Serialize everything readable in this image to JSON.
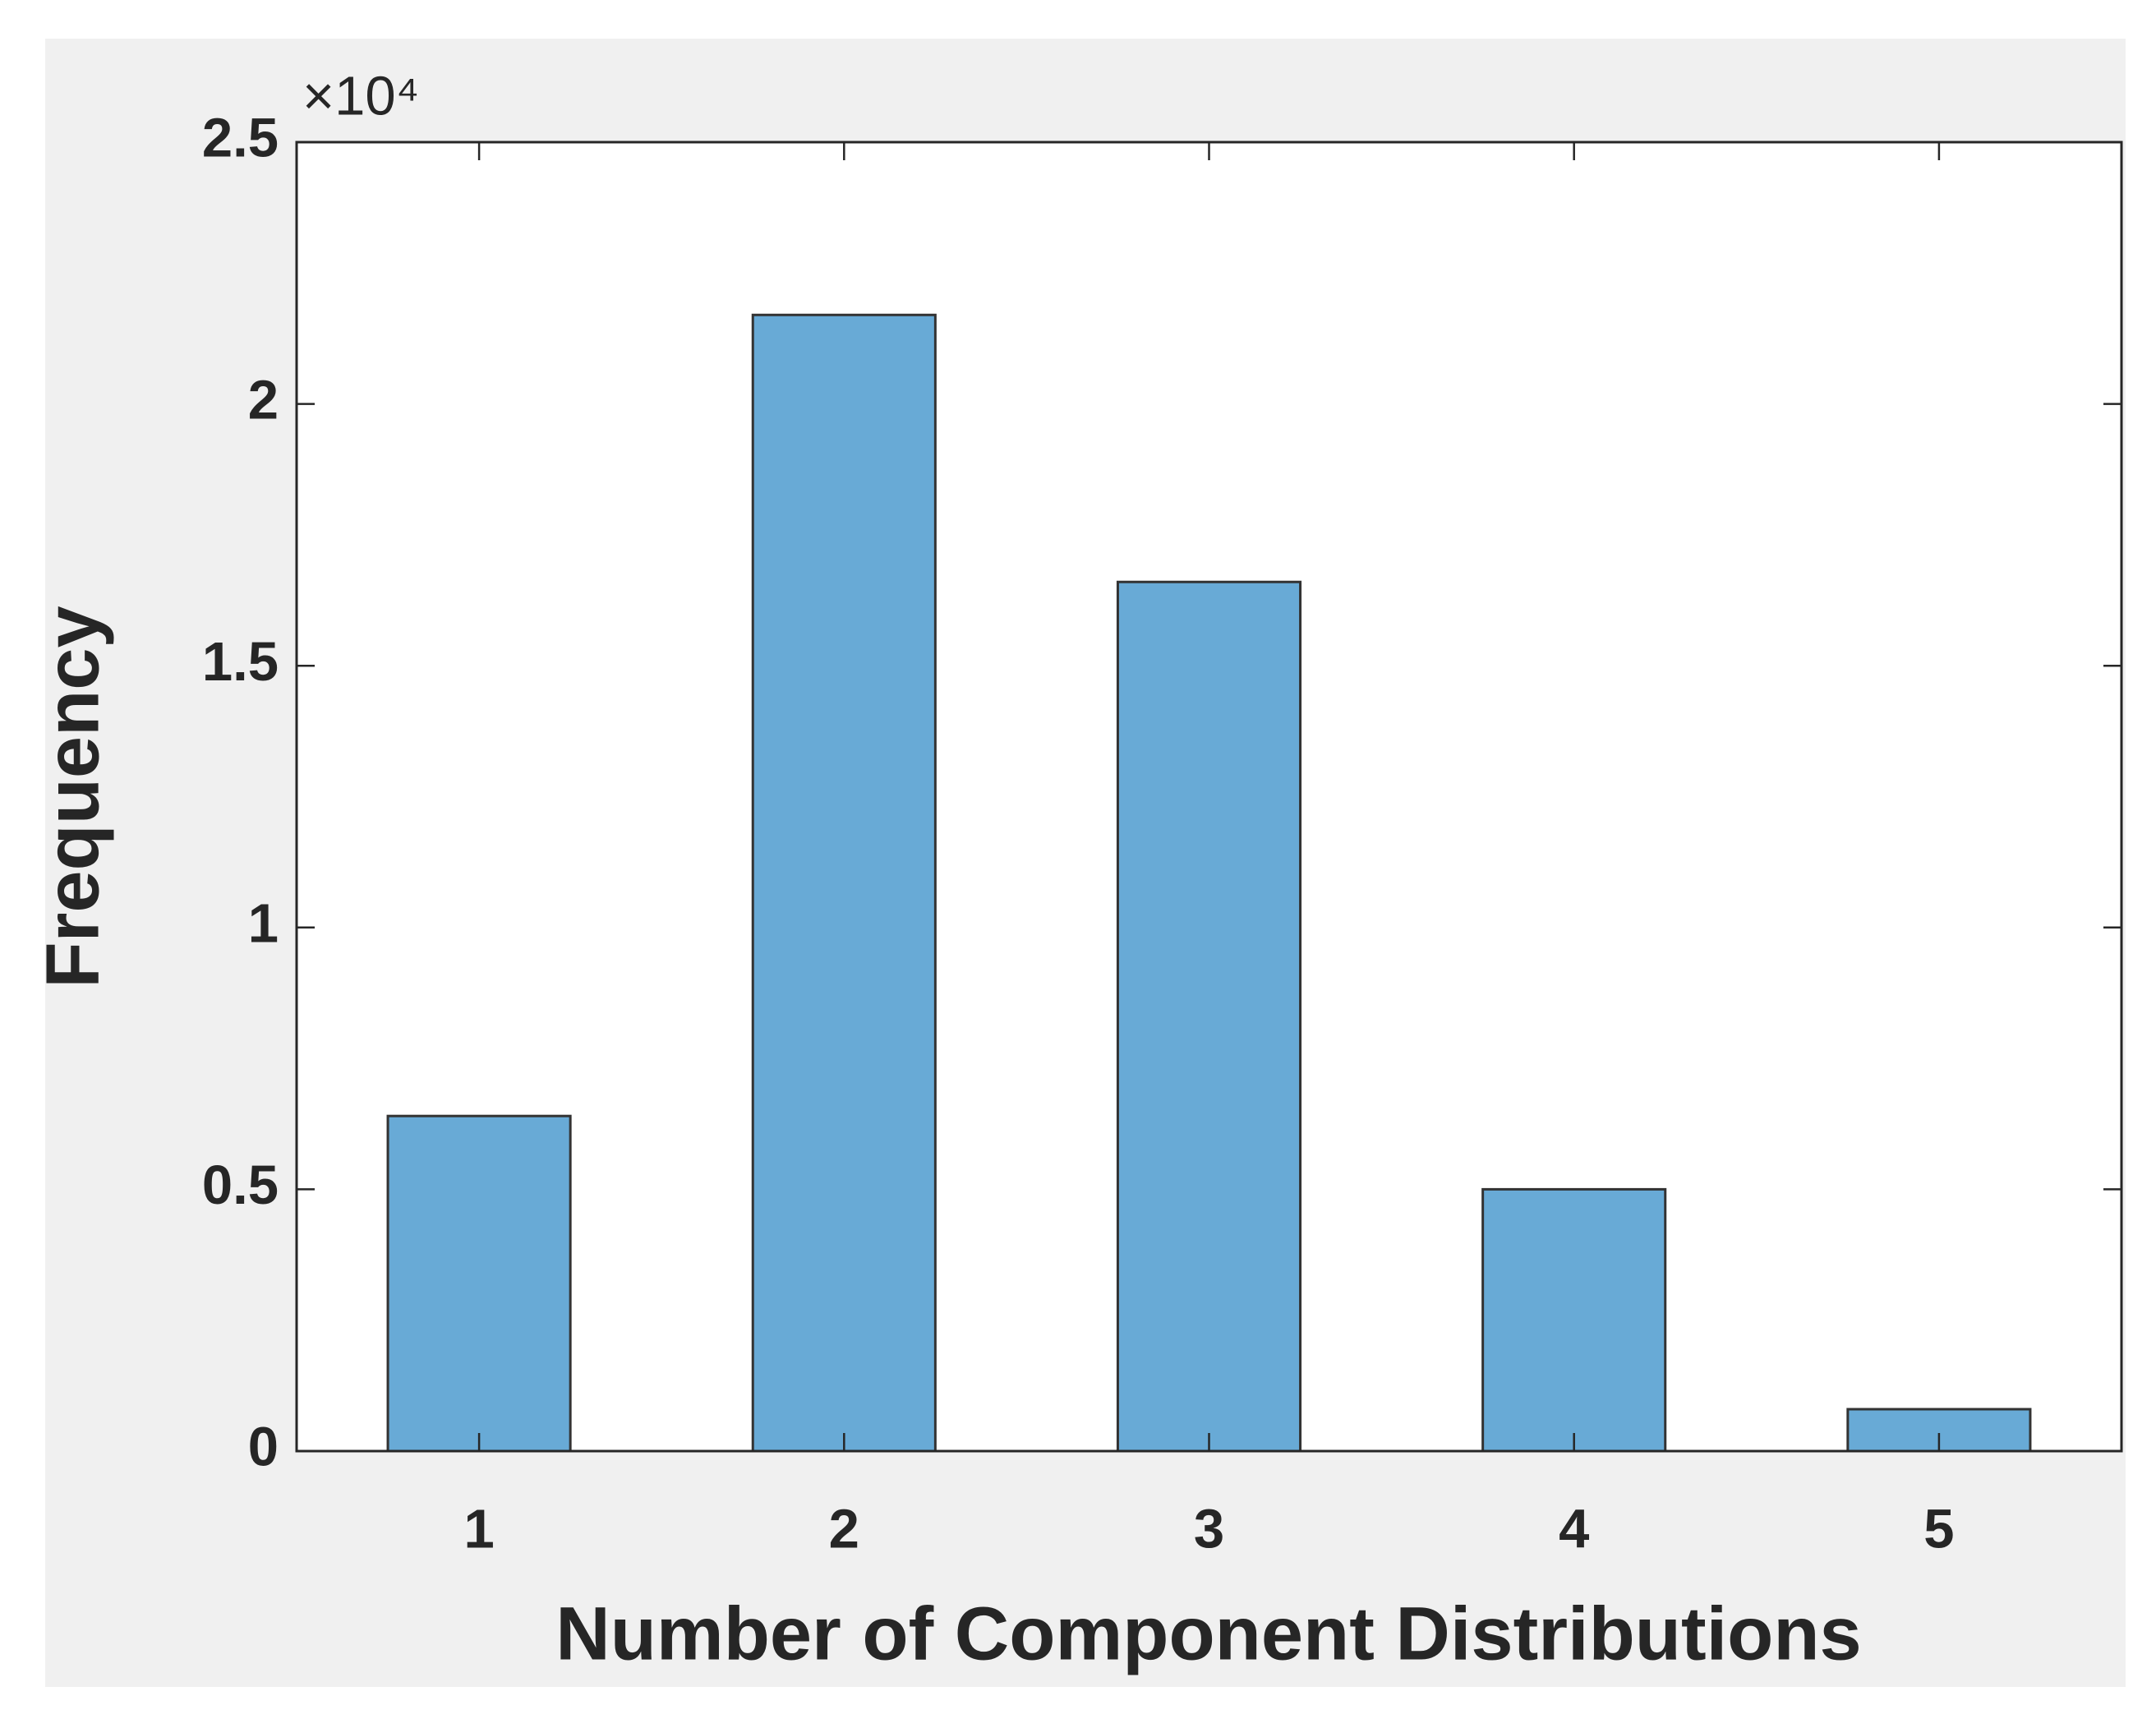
{
  "chart_data": {
    "type": "bar",
    "x_label": "Number of Component Distributions",
    "y_label": "Frequency",
    "y_multiplier": "×10⁴",
    "categories": [
      "1",
      "2",
      "3",
      "4",
      "5"
    ],
    "values": [
      0.64,
      2.17,
      1.66,
      0.5,
      0.08
    ],
    "color": "#68aad6",
    "edge_color": "#333333",
    "ylim": [
      0,
      2.5
    ],
    "yticks": [
      0,
      0.5,
      1,
      1.5,
      2,
      2.5
    ],
    "grid": false
  }
}
